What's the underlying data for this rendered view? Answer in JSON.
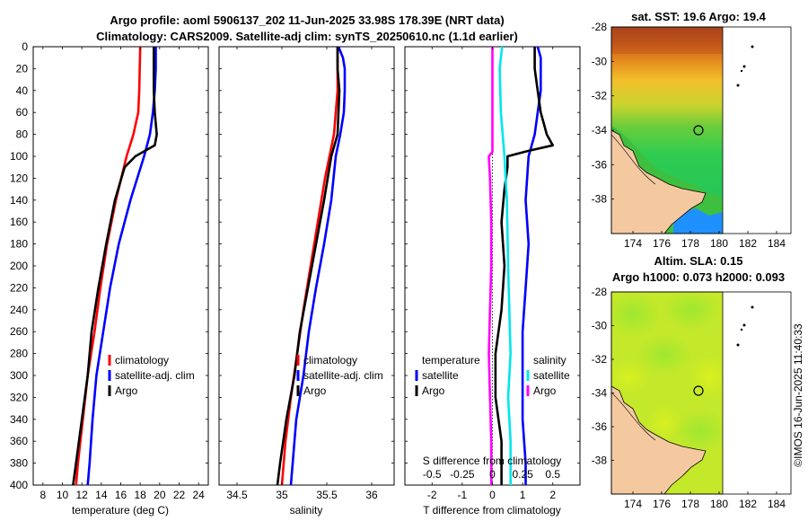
{
  "title_line1": "Argo profile: aoml 5906137_202 11-Jun-2025 33.98S 178.39E (NRT data)",
  "title_line2": "Climatology: CARS2009. Satellite-adj clim: synTS_20250610.nc (1.1d earlier)",
  "depth_ticks": [
    "0",
    "20",
    "40",
    "60",
    "80",
    "100",
    "120",
    "140",
    "160",
    "180",
    "200",
    "220",
    "240",
    "260",
    "280",
    "300",
    "320",
    "340",
    "360",
    "380",
    "400"
  ],
  "colors": {
    "climatology": "#ff0000",
    "satellite": "#0000ff",
    "argo": "#000000",
    "salinity_sat": "#00e5ee",
    "salinity_argo": "#ff00ff"
  },
  "chart_data": [
    {
      "type": "line",
      "panel": "temperature",
      "xlabel": "temperature (deg C)",
      "xlim": [
        7,
        25
      ],
      "ylim": [
        0,
        400
      ],
      "x_ticks": [
        "8",
        "10",
        "12",
        "14",
        "16",
        "18",
        "20",
        "22",
        "24"
      ],
      "legend": [
        "climatology",
        "satellite-adj. clim",
        "Argo"
      ],
      "series": [
        {
          "name": "climatology",
          "depth": [
            0,
            40,
            60,
            80,
            100,
            140,
            180,
            220,
            260,
            300,
            340,
            380,
            400
          ],
          "values": [
            18.0,
            17.9,
            17.8,
            17.3,
            16.6,
            15.5,
            14.6,
            13.9,
            13.3,
            12.6,
            12.1,
            11.6,
            11.4
          ]
        },
        {
          "name": "satellite-adj. clim",
          "depth": [
            0,
            20,
            40,
            60,
            80,
            100,
            140,
            180,
            220,
            260,
            300,
            340,
            380,
            400
          ],
          "values": [
            19.6,
            19.6,
            19.5,
            19.3,
            19.0,
            18.4,
            17.0,
            15.8,
            14.9,
            14.2,
            13.5,
            13.1,
            12.8,
            12.6
          ]
        },
        {
          "name": "Argo",
          "depth": [
            0,
            40,
            60,
            80,
            90,
            100,
            110,
            140,
            180,
            220,
            260,
            300,
            340,
            380,
            400
          ],
          "values": [
            19.4,
            19.4,
            19.5,
            19.7,
            19.5,
            17.5,
            16.4,
            15.4,
            14.5,
            13.7,
            13.0,
            12.6,
            12.0,
            11.4,
            11.1
          ]
        }
      ]
    },
    {
      "type": "line",
      "panel": "salinity",
      "xlabel": "salinity",
      "xlim": [
        34.3,
        36.25
      ],
      "ylim": [
        0,
        400
      ],
      "x_ticks": [
        "34.5",
        "35",
        "35.5",
        "36"
      ],
      "legend": [
        "climatology",
        "satellite-adj. clim",
        "Argo"
      ],
      "series": [
        {
          "name": "climatology",
          "depth": [
            0,
            40,
            80,
            120,
            160,
            200,
            240,
            280,
            320,
            360,
            400
          ],
          "values": [
            35.62,
            35.62,
            35.58,
            35.48,
            35.4,
            35.32,
            35.24,
            35.17,
            35.1,
            35.04,
            35.0
          ],
          "visible": "partly hidden"
        },
        {
          "name": "satellite-adj. clim",
          "depth": [
            0,
            10,
            20,
            40,
            60,
            80,
            100,
            140,
            180,
            220,
            260,
            300,
            340,
            380,
            400
          ],
          "values": [
            35.63,
            35.68,
            35.7,
            35.7,
            35.69,
            35.65,
            35.6,
            35.55,
            35.47,
            35.38,
            35.3,
            35.24,
            35.16,
            35.12,
            35.1
          ]
        },
        {
          "name": "Argo",
          "depth": [
            0,
            20,
            40,
            60,
            80,
            100,
            140,
            180,
            220,
            260,
            300,
            340,
            380,
            400
          ],
          "values": [
            35.62,
            35.62,
            35.64,
            35.63,
            35.62,
            35.55,
            35.47,
            35.38,
            35.29,
            35.2,
            35.14,
            35.05,
            34.98,
            34.95
          ]
        }
      ]
    },
    {
      "type": "line",
      "panel": "difference",
      "xlabel": "T difference from climatology",
      "top_label": "S difference from climatology",
      "xlim": [
        -2.9,
        2.9
      ],
      "ylim": [
        0,
        400
      ],
      "x_ticks": [
        "-2",
        "-1",
        "0",
        "1",
        "2"
      ],
      "s_ticks": [
        "-0.5",
        "-0.25",
        "0",
        "0.25",
        "0.5"
      ],
      "legend_temperature": "temperature",
      "legend_salinity": "salinity",
      "legend_satellite": "satellite",
      "legend_argo": "Argo",
      "series": [
        {
          "name": "T satellite",
          "depth": [
            0,
            10,
            20,
            40,
            60,
            80,
            100,
            140,
            180,
            220,
            260,
            300,
            340,
            380,
            400
          ],
          "values": [
            1.5,
            1.6,
            1.6,
            1.6,
            1.5,
            1.4,
            1.2,
            1.1,
            1.2,
            1.1,
            1.0,
            1.0,
            1.0,
            1.1,
            1.1
          ]
        },
        {
          "name": "T Argo",
          "depth": [
            0,
            20,
            40,
            60,
            70,
            80,
            90,
            95,
            100,
            110,
            130,
            160,
            200,
            240,
            280,
            320,
            360,
            400
          ],
          "values": [
            1.4,
            1.4,
            1.5,
            1.6,
            1.7,
            1.8,
            2.0,
            1.2,
            0.5,
            0.5,
            0.4,
            0.3,
            0.4,
            0.3,
            0.1,
            0.1,
            0.3,
            0.3
          ]
        },
        {
          "name": "S satellite",
          "depth": [
            0,
            20,
            60,
            100,
            140,
            200,
            240,
            280,
            320,
            360,
            400
          ],
          "values": [
            0.08,
            0.06,
            0.07,
            0.1,
            0.12,
            0.13,
            0.14,
            0.15,
            0.13,
            0.15,
            0.15
          ]
        },
        {
          "name": "S Argo",
          "depth": [
            0,
            20,
            60,
            96,
            100,
            120,
            160,
            200,
            240,
            280,
            320,
            360,
            400
          ],
          "values": [
            0.0,
            0.0,
            0.0,
            0.0,
            -0.03,
            -0.02,
            -0.01,
            -0.01,
            -0.02,
            -0.03,
            -0.02,
            -0.01,
            -0.01
          ]
        }
      ]
    }
  ],
  "map_sst": {
    "title": "sat. SST: 19.6 Argo: 19.4",
    "y_ticks": [
      "-28",
      "-30",
      "-32",
      "-34",
      "-36",
      "-38"
    ],
    "x_ticks": [
      "174",
      "176",
      "178",
      "180",
      "182",
      "184"
    ]
  },
  "map_sla": {
    "title_line1": "Altim. SLA: 0.15",
    "title_line2": "Argo h1000: 0.073 h2000: 0.093",
    "y_ticks": [
      "-28",
      "-30",
      "-32",
      "-34",
      "-36",
      "-38"
    ],
    "x_ticks": [
      "174",
      "176",
      "178",
      "180",
      "182",
      "184"
    ]
  },
  "credit": "©IMOS 16-Jun-2025 11:40:33"
}
